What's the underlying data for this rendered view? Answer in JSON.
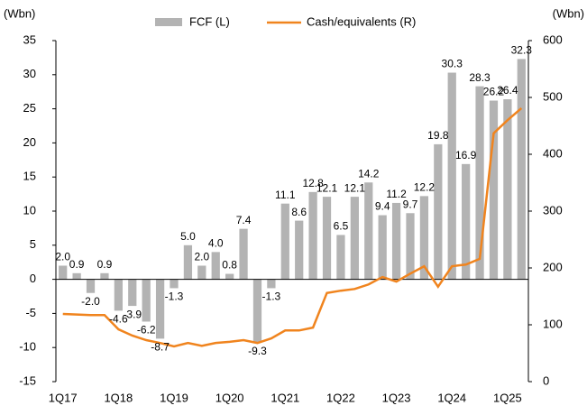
{
  "chart_data": {
    "type": "bar_line",
    "y_label": "(Wbn)",
    "y2_label": "(Wbn)",
    "categories": [
      "1Q17",
      null,
      null,
      null,
      "1Q18",
      null,
      null,
      null,
      "1Q19",
      null,
      null,
      null,
      "1Q20",
      null,
      null,
      null,
      "1Q21",
      null,
      null,
      null,
      "1Q22",
      null,
      null,
      null,
      "1Q23",
      null,
      null,
      null,
      "1Q24",
      null,
      null,
      null,
      "1Q25",
      null
    ],
    "series": [
      {
        "name": "FCF (L)",
        "color": "#b3b3b3",
        "type": "bar",
        "values": [
          2.0,
          0.9,
          -2.0,
          0.9,
          -4.6,
          -3.9,
          -6.2,
          -8.7,
          -1.3,
          5.0,
          2.0,
          4.0,
          0.8,
          7.4,
          -9.3,
          -1.3,
          11.1,
          8.6,
          12.8,
          12.1,
          6.5,
          12.1,
          14.2,
          9.4,
          11.2,
          9.7,
          12.2,
          19.8,
          30.3,
          16.9,
          28.3,
          26.2,
          26.4,
          32.3
        ],
        "value_labels": [
          "2.0",
          "0.9",
          "-2.0",
          "0.9",
          "-4.6",
          "-3.9",
          "-6.2",
          "-8.7",
          "-1.3",
          "5.0",
          "2.0",
          "4.0",
          "0.8",
          "7.4",
          "-9.3",
          "-1.3",
          "11.1",
          "8.6",
          "12.8",
          "12.1",
          "6.5",
          "12.1",
          "14.2",
          "9.4",
          "11.2",
          "9.7",
          "12.2",
          "19.8",
          "30.3",
          "16.9",
          "28.3",
          "26.2",
          "26.4",
          "32.3"
        ]
      },
      {
        "name": "Cash/equivalents (R)",
        "color": "#f0841e",
        "type": "line",
        "axis": "y2",
        "values": [
          119,
          118,
          117,
          117,
          92,
          81,
          73,
          68,
          62,
          68,
          63,
          68,
          70,
          73,
          68,
          76,
          90,
          90,
          95,
          156,
          160,
          163,
          171,
          184,
          176,
          190,
          203,
          167,
          203,
          206,
          216,
          437,
          460,
          481
        ]
      }
    ],
    "ylim": [
      -15,
      35
    ],
    "yticks": [
      -15,
      -10,
      -5,
      0,
      5,
      10,
      15,
      20,
      25,
      30,
      35
    ],
    "y2lim": [
      0,
      600
    ],
    "y2ticks": [
      0,
      100,
      200,
      300,
      400,
      500,
      600
    ]
  }
}
